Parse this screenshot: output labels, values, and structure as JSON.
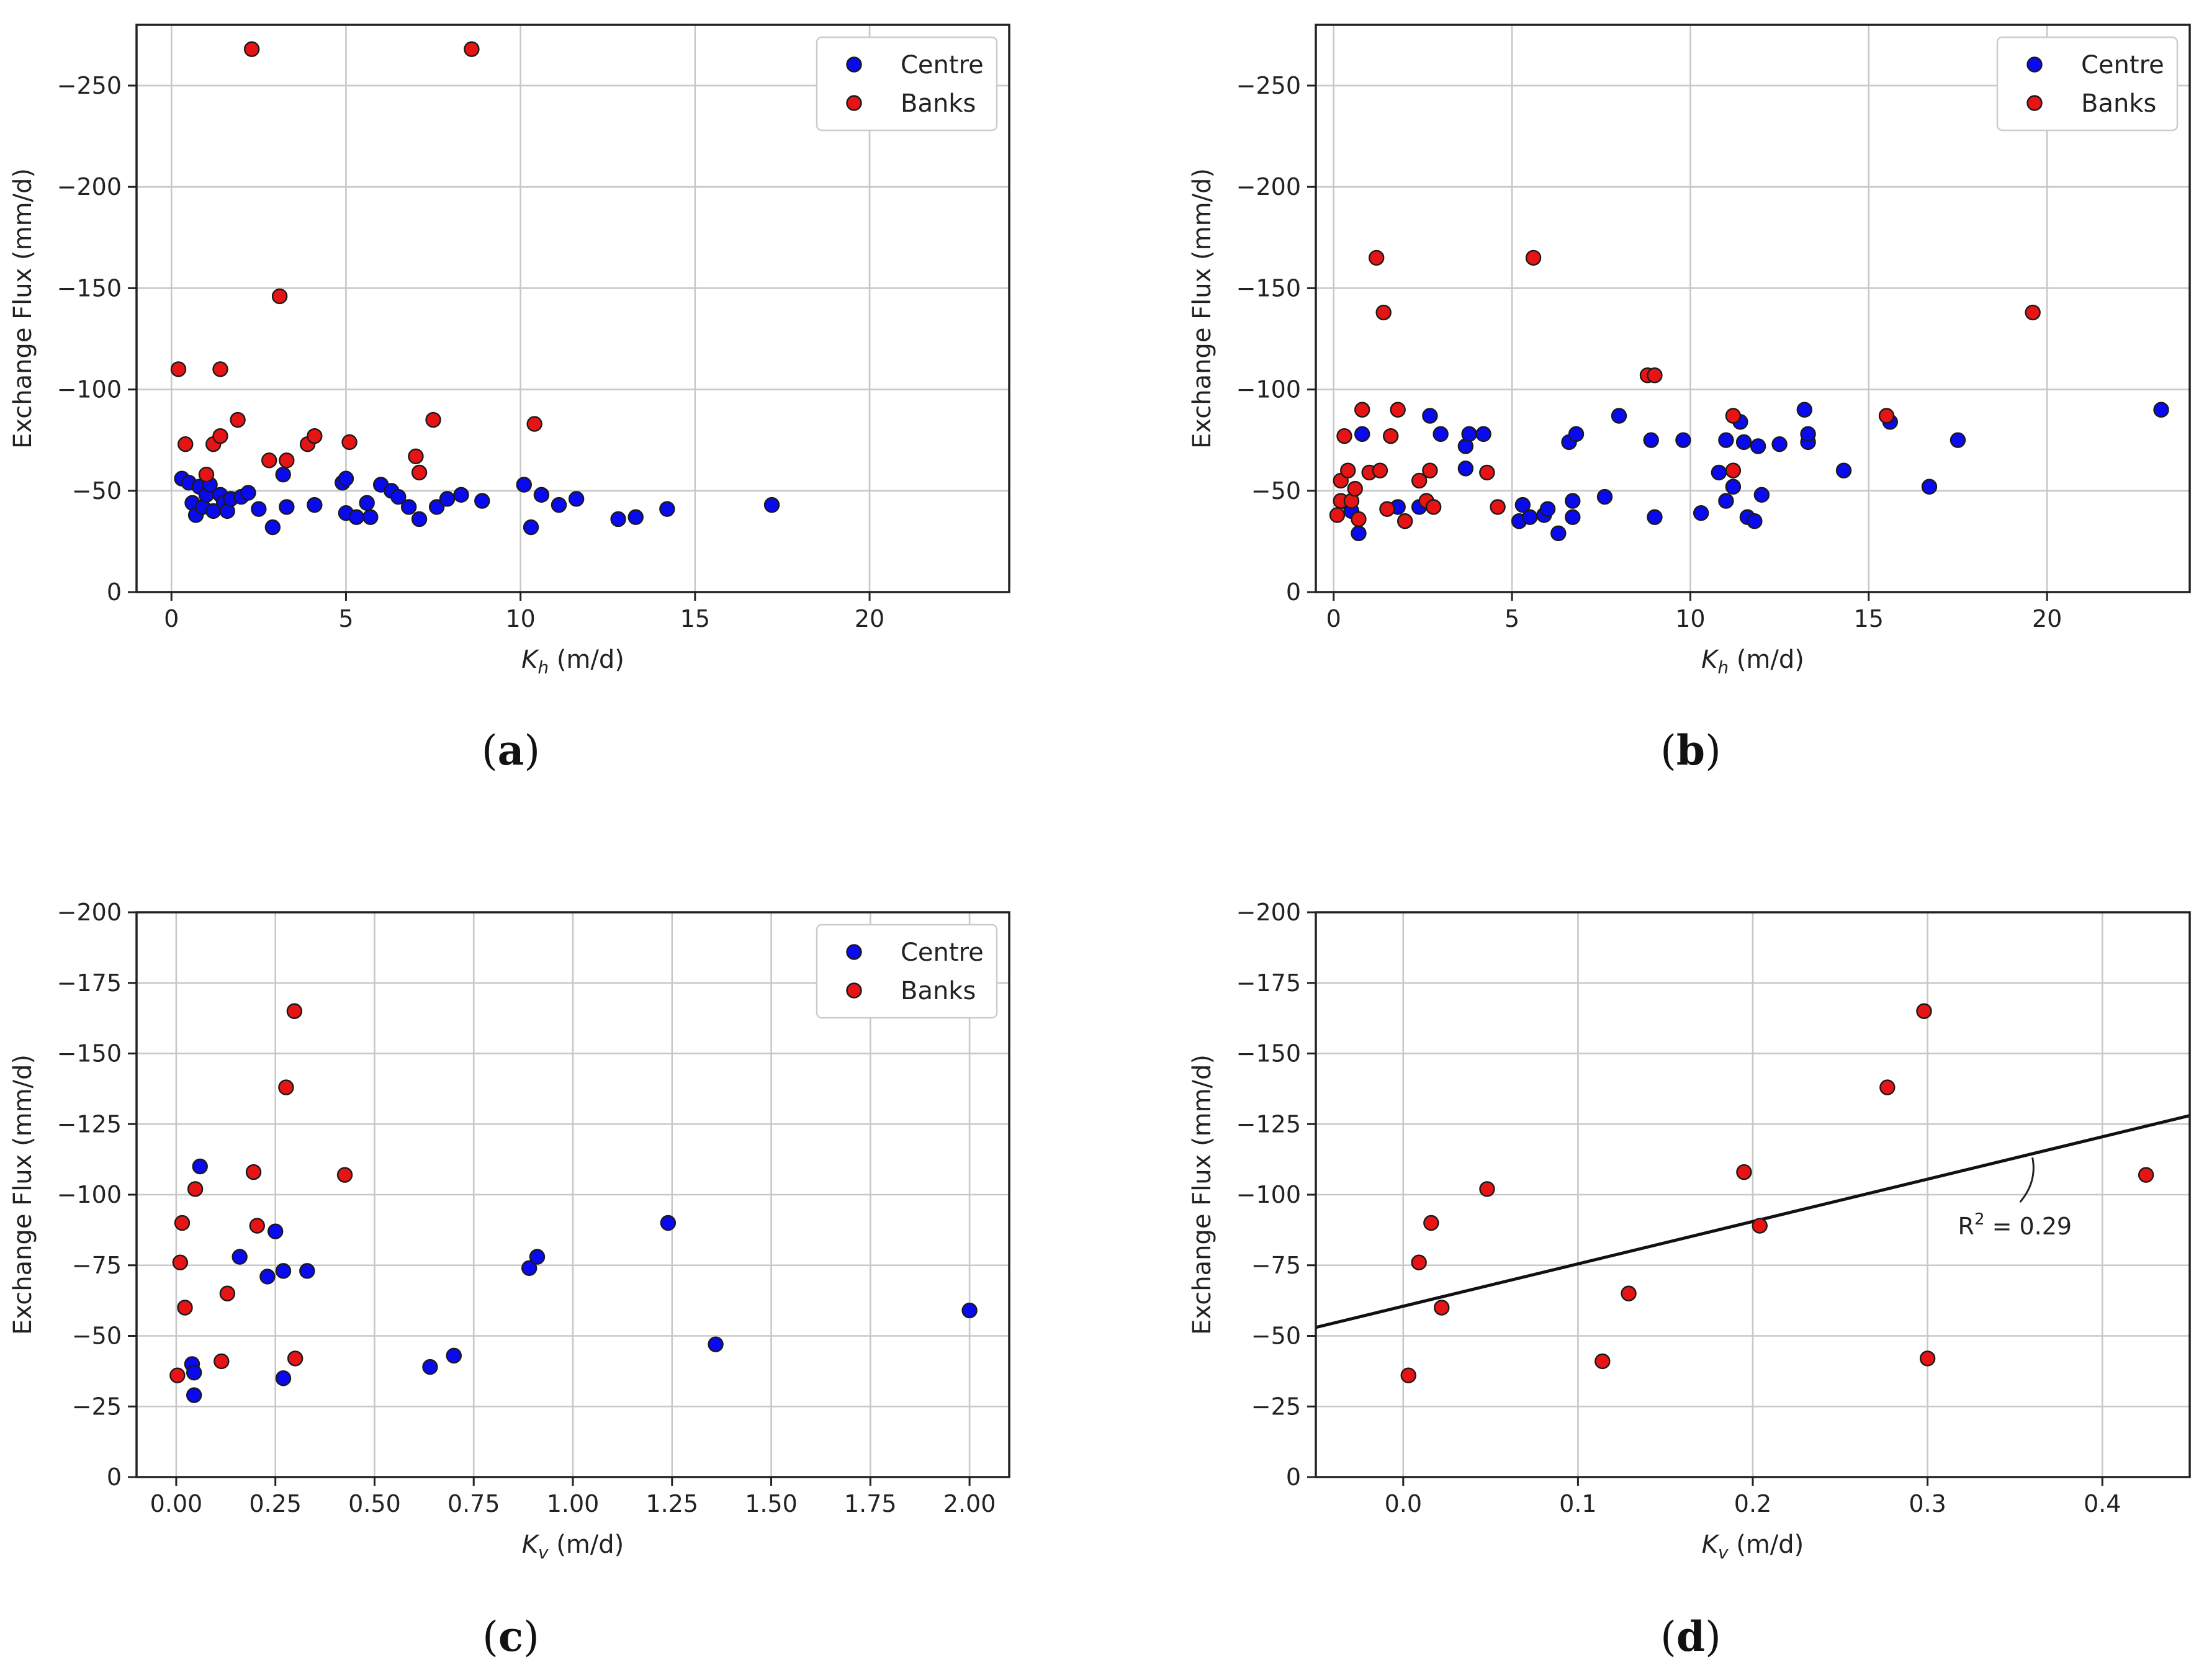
{
  "colors": {
    "centre": "#0a0af0",
    "banks": "#e61414",
    "axes": "#222222",
    "grid": "#c8c8c8"
  },
  "legend": {
    "centre": "Centre",
    "banks": "Banks"
  },
  "chart_data": [
    {
      "type": "scatter",
      "panel_label": "a",
      "xlabel": "K_h (m/d)",
      "xlabel_main": "K",
      "xlabel_sub": "h",
      "xlabel_unit": " (m/d)",
      "ylabel": "Exchange Flux (mm/d)",
      "xlim": [
        -1,
        24
      ],
      "ylim": [
        0,
        -280
      ],
      "xticks": [
        0,
        5,
        10,
        15,
        20
      ],
      "xtick_labels": [
        "0",
        "5",
        "10",
        "15",
        "20"
      ],
      "yticks": [
        0,
        -50,
        -100,
        -150,
        -200,
        -250
      ],
      "ytick_labels": [
        "0",
        "−50",
        "−100",
        "−150",
        "−200",
        "−250"
      ],
      "grid": true,
      "legend_position": "top-right",
      "series": [
        {
          "name": "Centre",
          "color_key": "centre",
          "points": [
            [
              0.3,
              -56
            ],
            [
              0.5,
              -54
            ],
            [
              0.6,
              -44
            ],
            [
              0.7,
              -38
            ],
            [
              0.8,
              -52
            ],
            [
              0.9,
              -42
            ],
            [
              1.0,
              -48
            ],
            [
              1.1,
              -53
            ],
            [
              1.2,
              -40
            ],
            [
              1.4,
              -48
            ],
            [
              1.5,
              -44
            ],
            [
              1.6,
              -40
            ],
            [
              1.7,
              -46
            ],
            [
              2.0,
              -47
            ],
            [
              2.2,
              -49
            ],
            [
              2.5,
              -41
            ],
            [
              2.9,
              -32
            ],
            [
              3.2,
              -58
            ],
            [
              3.3,
              -42
            ],
            [
              4.1,
              -43
            ],
            [
              4.9,
              -54
            ],
            [
              5.0,
              -56
            ],
            [
              5.0,
              -39
            ],
            [
              5.3,
              -37
            ],
            [
              5.6,
              -44
            ],
            [
              5.7,
              -37
            ],
            [
              6.0,
              -53
            ],
            [
              6.3,
              -50
            ],
            [
              6.5,
              -47
            ],
            [
              6.8,
              -42
            ],
            [
              7.1,
              -36
            ],
            [
              7.6,
              -42
            ],
            [
              7.9,
              -46
            ],
            [
              8.3,
              -48
            ],
            [
              8.9,
              -45
            ],
            [
              10.1,
              -53
            ],
            [
              10.3,
              -32
            ],
            [
              10.6,
              -48
            ],
            [
              11.1,
              -43
            ],
            [
              11.6,
              -46
            ],
            [
              12.8,
              -36
            ],
            [
              13.3,
              -37
            ],
            [
              14.2,
              -41
            ],
            [
              17.2,
              -43
            ]
          ]
        },
        {
          "name": "Banks",
          "color_key": "banks",
          "points": [
            [
              0.2,
              -110
            ],
            [
              0.4,
              -73
            ],
            [
              1.0,
              -58
            ],
            [
              1.2,
              -73
            ],
            [
              1.4,
              -110
            ],
            [
              1.4,
              -77
            ],
            [
              1.9,
              -85
            ],
            [
              2.3,
              -268
            ],
            [
              2.8,
              -65
            ],
            [
              3.1,
              -146
            ],
            [
              3.3,
              -65
            ],
            [
              3.9,
              -73
            ],
            [
              4.1,
              -77
            ],
            [
              5.1,
              -74
            ],
            [
              7.0,
              -67
            ],
            [
              7.1,
              -59
            ],
            [
              7.5,
              -85
            ],
            [
              8.6,
              -268
            ],
            [
              10.4,
              -83
            ]
          ]
        }
      ]
    },
    {
      "type": "scatter",
      "panel_label": "b",
      "xlabel": "K_h (m/d)",
      "xlabel_main": "K",
      "xlabel_sub": "h",
      "xlabel_unit": " (m/d)",
      "ylabel": "Exchange Flux (mm/d)",
      "xlim": [
        -0.5,
        24
      ],
      "ylim": [
        0,
        -280
      ],
      "xticks": [
        0,
        5,
        10,
        15,
        20
      ],
      "xtick_labels": [
        "0",
        "5",
        "10",
        "15",
        "20"
      ],
      "yticks": [
        0,
        -50,
        -100,
        -150,
        -200,
        -250
      ],
      "ytick_labels": [
        "0",
        "−50",
        "−100",
        "−150",
        "−200",
        "−250"
      ],
      "grid": true,
      "legend_position": "top-right",
      "series": [
        {
          "name": "Centre",
          "color_key": "centre",
          "points": [
            [
              0.4,
              -44
            ],
            [
              0.5,
              -40
            ],
            [
              0.7,
              -29
            ],
            [
              0.8,
              -78
            ],
            [
              1.8,
              -42
            ],
            [
              2.4,
              -42
            ],
            [
              2.7,
              -87
            ],
            [
              3.0,
              -78
            ],
            [
              3.7,
              -72
            ],
            [
              3.8,
              -78
            ],
            [
              3.7,
              -61
            ],
            [
              4.2,
              -78
            ],
            [
              5.2,
              -35
            ],
            [
              5.3,
              -43
            ],
            [
              5.5,
              -37
            ],
            [
              5.9,
              -38
            ],
            [
              6.0,
              -41
            ],
            [
              6.3,
              -29
            ],
            [
              6.6,
              -74
            ],
            [
              6.7,
              -37
            ],
            [
              6.7,
              -45
            ],
            [
              6.8,
              -78
            ],
            [
              7.6,
              -47
            ],
            [
              8.0,
              -87
            ],
            [
              8.9,
              -75
            ],
            [
              9.0,
              -37
            ],
            [
              9.8,
              -75
            ],
            [
              10.3,
              -39
            ],
            [
              10.8,
              -59
            ],
            [
              11.0,
              -75
            ],
            [
              11.0,
              -45
            ],
            [
              11.2,
              -52
            ],
            [
              11.4,
              -84
            ],
            [
              11.5,
              -74
            ],
            [
              11.6,
              -37
            ],
            [
              11.8,
              -35
            ],
            [
              11.9,
              -72
            ],
            [
              12.0,
              -48
            ],
            [
              12.5,
              -73
            ],
            [
              13.2,
              -90
            ],
            [
              13.3,
              -74
            ],
            [
              13.3,
              -78
            ],
            [
              14.3,
              -60
            ],
            [
              15.6,
              -84
            ],
            [
              16.7,
              -52
            ],
            [
              17.5,
              -75
            ],
            [
              23.2,
              -90
            ]
          ]
        },
        {
          "name": "Banks",
          "color_key": "banks",
          "points": [
            [
              0.1,
              -38
            ],
            [
              0.2,
              -45
            ],
            [
              0.2,
              -55
            ],
            [
              0.3,
              -77
            ],
            [
              0.4,
              -60
            ],
            [
              0.5,
              -45
            ],
            [
              0.6,
              -51
            ],
            [
              0.7,
              -36
            ],
            [
              0.8,
              -90
            ],
            [
              1.0,
              -59
            ],
            [
              1.2,
              -165
            ],
            [
              1.3,
              -60
            ],
            [
              1.4,
              -138
            ],
            [
              1.5,
              -41
            ],
            [
              1.6,
              -77
            ],
            [
              1.8,
              -90
            ],
            [
              2.0,
              -35
            ],
            [
              2.4,
              -55
            ],
            [
              2.6,
              -45
            ],
            [
              2.7,
              -60
            ],
            [
              2.8,
              -42
            ],
            [
              4.3,
              -59
            ],
            [
              4.6,
              -42
            ],
            [
              5.6,
              -165
            ],
            [
              8.8,
              -107
            ],
            [
              9.0,
              -107
            ],
            [
              11.2,
              -87
            ],
            [
              11.2,
              -60
            ],
            [
              15.5,
              -87
            ],
            [
              19.6,
              -138
            ]
          ]
        }
      ]
    },
    {
      "type": "scatter",
      "panel_label": "c",
      "xlabel": "K_v (m/d)",
      "xlabel_main": "K",
      "xlabel_sub": "v",
      "xlabel_unit": " (m/d)",
      "ylabel": "Exchange Flux (mm/d)",
      "xlim": [
        -0.1,
        2.1
      ],
      "ylim": [
        0,
        -200
      ],
      "xticks": [
        0.0,
        0.25,
        0.5,
        0.75,
        1.0,
        1.25,
        1.5,
        1.75,
        2.0
      ],
      "xtick_labels": [
        "0.00",
        "0.25",
        "0.50",
        "0.75",
        "1.00",
        "1.25",
        "1.50",
        "1.75",
        "2.00"
      ],
      "yticks": [
        0,
        -25,
        -50,
        -75,
        -100,
        -125,
        -150,
        -175,
        -200
      ],
      "ytick_labels": [
        "0",
        "−25",
        "−50",
        "−75",
        "−100",
        "−125",
        "−150",
        "−175",
        "−200"
      ],
      "grid": true,
      "legend_position": "top-right",
      "series": [
        {
          "name": "Centre",
          "color_key": "centre",
          "points": [
            [
              0.04,
              -40
            ],
            [
              0.045,
              -37
            ],
            [
              0.045,
              -29
            ],
            [
              0.06,
              -110
            ],
            [
              0.16,
              -78
            ],
            [
              0.23,
              -71
            ],
            [
              0.25,
              -87
            ],
            [
              0.27,
              -73
            ],
            [
              0.27,
              -35
            ],
            [
              0.33,
              -73
            ],
            [
              0.64,
              -39
            ],
            [
              0.7,
              -43
            ],
            [
              0.89,
              -74
            ],
            [
              0.91,
              -78
            ],
            [
              1.24,
              -90
            ],
            [
              1.36,
              -47
            ],
            [
              2.0,
              -59
            ]
          ]
        },
        {
          "name": "Banks",
          "color_key": "banks",
          "points": [
            [
              0.003,
              -36
            ],
            [
              0.01,
              -76
            ],
            [
              0.015,
              -90
            ],
            [
              0.022,
              -60
            ],
            [
              0.048,
              -102
            ],
            [
              0.114,
              -41
            ],
            [
              0.129,
              -65
            ],
            [
              0.195,
              -108
            ],
            [
              0.204,
              -89
            ],
            [
              0.277,
              -138
            ],
            [
              0.298,
              -165
            ],
            [
              0.3,
              -42
            ],
            [
              0.425,
              -107
            ]
          ]
        }
      ]
    },
    {
      "type": "scatter",
      "panel_label": "d",
      "xlabel": "K_v (m/d)",
      "xlabel_main": "K",
      "xlabel_sub": "v",
      "xlabel_unit": " (m/d)",
      "ylabel": "Exchange Flux (mm/d)",
      "xlim": [
        -0.05,
        0.45
      ],
      "ylim": [
        0,
        -200
      ],
      "xticks": [
        0.0,
        0.1,
        0.2,
        0.3,
        0.4
      ],
      "xtick_labels": [
        "0.0",
        "0.1",
        "0.2",
        "0.3",
        "0.4"
      ],
      "yticks": [
        0,
        -25,
        -50,
        -75,
        -100,
        -125,
        -150,
        -175,
        -200
      ],
      "ytick_labels": [
        "0",
        "−25",
        "−50",
        "−75",
        "−100",
        "−125",
        "−150",
        "−175",
        "−200"
      ],
      "grid": true,
      "legend_position": "none",
      "series": [
        {
          "name": "Banks",
          "color_key": "banks",
          "points": [
            [
              0.003,
              -36
            ],
            [
              0.009,
              -76
            ],
            [
              0.016,
              -90
            ],
            [
              0.022,
              -60
            ],
            [
              0.048,
              -102
            ],
            [
              0.114,
              -41
            ],
            [
              0.129,
              -65
            ],
            [
              0.195,
              -108
            ],
            [
              0.204,
              -89
            ],
            [
              0.277,
              -138
            ],
            [
              0.298,
              -165
            ],
            [
              0.3,
              -42
            ],
            [
              0.425,
              -107
            ]
          ]
        }
      ],
      "fit_line": {
        "slope": -150,
        "intercept": -60.5
      },
      "annotation": {
        "text_main": "R",
        "text_sup": "2",
        "text_rest": " = 0.29",
        "x": 0.36
      }
    }
  ]
}
